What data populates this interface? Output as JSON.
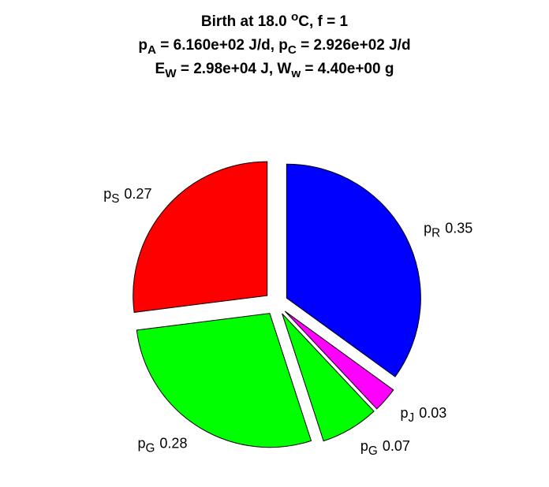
{
  "chart_data": {
    "type": "pie",
    "title": [
      [
        {
          "text": "Birth at 18.0 "
        },
        {
          "text": "o",
          "shift": "sup"
        },
        {
          "text": "C, f = 1"
        }
      ],
      [
        {
          "text": "p"
        },
        {
          "text": "A",
          "shift": "sub"
        },
        {
          "text": " = 6.160e+02 J/d, p"
        },
        {
          "text": "C",
          "shift": "sub"
        },
        {
          "text": " = 2.926e+02 J/d"
        }
      ],
      [
        {
          "text": "E"
        },
        {
          "text": "W",
          "shift": "sub"
        },
        {
          "text": " = 2.98e+04 J, W"
        },
        {
          "text": "w",
          "shift": "sub"
        },
        {
          "text": " = 4.40e+00 g"
        }
      ]
    ],
    "categories": [
      {
        "base": "p",
        "sub": "R"
      },
      {
        "base": "p",
        "sub": "J"
      },
      {
        "base": "p",
        "sub": "G"
      },
      {
        "base": "p",
        "sub": "G"
      },
      {
        "base": "p",
        "sub": "S"
      }
    ],
    "values": [
      0.35,
      0.03,
      0.07,
      0.28,
      0.27
    ],
    "colors": [
      "#0000ff",
      "#ff00ff",
      "#00ff00",
      "#00ff00",
      "#ff0000"
    ],
    "explode": true
  }
}
